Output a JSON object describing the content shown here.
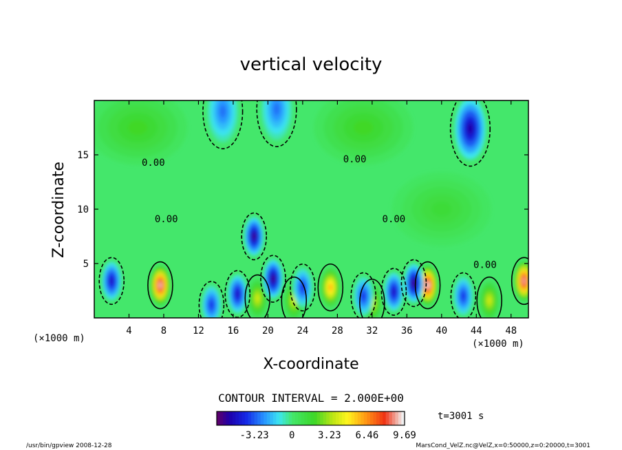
{
  "chart_data": {
    "type": "heatmap",
    "title": "vertical velocity",
    "xlabel": "X-coordinate",
    "ylabel": "Z-coordinate",
    "x_unit_left": "(×1000 m)",
    "x_unit_right": "(×1000 m)",
    "xlim": [
      0,
      50
    ],
    "ylim": [
      0,
      20
    ],
    "x_ticks": [
      4,
      8,
      12,
      16,
      20,
      24,
      28,
      32,
      36,
      40,
      44,
      48
    ],
    "y_ticks": [
      5,
      10,
      15
    ],
    "contour_interval_text": "CONTOUR INTERVAL = 2.000E+00",
    "contour_label": "0.00",
    "contour_label_positions": [
      [
        6.8,
        14.0
      ],
      [
        8.3,
        8.8
      ],
      [
        30.0,
        14.3
      ],
      [
        34.5,
        8.8
      ],
      [
        45.0,
        4.6
      ]
    ],
    "colorbar": {
      "range": [
        -6.46,
        9.69
      ],
      "tick_labels": [
        "-3.23",
        "0",
        "3.23",
        "6.46",
        "9.69"
      ],
      "tick_values": [
        -3.23,
        0,
        3.23,
        6.46,
        9.69
      ]
    },
    "time_label": "t=3001 s",
    "footer_left": "/usr/bin/gpview   2008-12-28",
    "footer_right": "MarsCond_VelZ.nc@VelZ,x=0:50000,z=0:20000,t=3001",
    "features": [
      {
        "kind": "updraft",
        "x": 7.6,
        "z": 3.0,
        "w": 9.2
      },
      {
        "kind": "updraft",
        "x": 38.4,
        "z": 3.0,
        "w": 9.5
      },
      {
        "kind": "updraft",
        "x": 49.5,
        "z": 3.4,
        "w": 9.0
      },
      {
        "kind": "updraft",
        "x": 27.2,
        "z": 2.8,
        "w": 6.0
      },
      {
        "kind": "updraft",
        "x": 18.8,
        "z": 1.8,
        "w": 4.0
      },
      {
        "kind": "updraft",
        "x": 23.0,
        "z": 1.6,
        "w": 4.0
      },
      {
        "kind": "updraft",
        "x": 32.0,
        "z": 1.4,
        "w": 4.0
      },
      {
        "kind": "updraft",
        "x": 45.5,
        "z": 1.6,
        "w": 4.0
      },
      {
        "kind": "downdraft",
        "x": 43.3,
        "z": 17.4,
        "w": -5.5
      },
      {
        "kind": "downdraft",
        "x": 18.4,
        "z": 7.5,
        "w": -6.0
      },
      {
        "kind": "downdraft",
        "x": 20.6,
        "z": 3.6,
        "w": -6.0
      },
      {
        "kind": "downdraft",
        "x": 36.8,
        "z": 3.2,
        "w": -6.0
      },
      {
        "kind": "downdraft",
        "x": 2.0,
        "z": 3.4,
        "w": -5.0
      },
      {
        "kind": "downdraft",
        "x": 13.5,
        "z": 1.2,
        "w": -4.0
      },
      {
        "kind": "downdraft",
        "x": 16.5,
        "z": 2.2,
        "w": -5.0
      },
      {
        "kind": "downdraft",
        "x": 24.0,
        "z": 2.8,
        "w": -4.0
      },
      {
        "kind": "downdraft",
        "x": 31.0,
        "z": 2.0,
        "w": -4.0
      },
      {
        "kind": "downdraft",
        "x": 34.5,
        "z": 2.4,
        "w": -5.0
      },
      {
        "kind": "downdraft",
        "x": 42.5,
        "z": 2.0,
        "w": -4.0
      },
      {
        "kind": "downdraft",
        "x": 14.8,
        "z": 19.0,
        "w": -3.0
      },
      {
        "kind": "downdraft",
        "x": 21.0,
        "z": 19.2,
        "w": -3.0
      },
      {
        "kind": "weak_updraft",
        "x": 5.0,
        "z": 17.5,
        "w": 2.0
      },
      {
        "kind": "weak_updraft",
        "x": 31.0,
        "z": 17.5,
        "w": 2.0
      },
      {
        "kind": "weak_updraft",
        "x": 40.0,
        "z": 10.0,
        "w": 1.5
      }
    ],
    "grid": false,
    "legend": "colorbar bottom-center"
  }
}
